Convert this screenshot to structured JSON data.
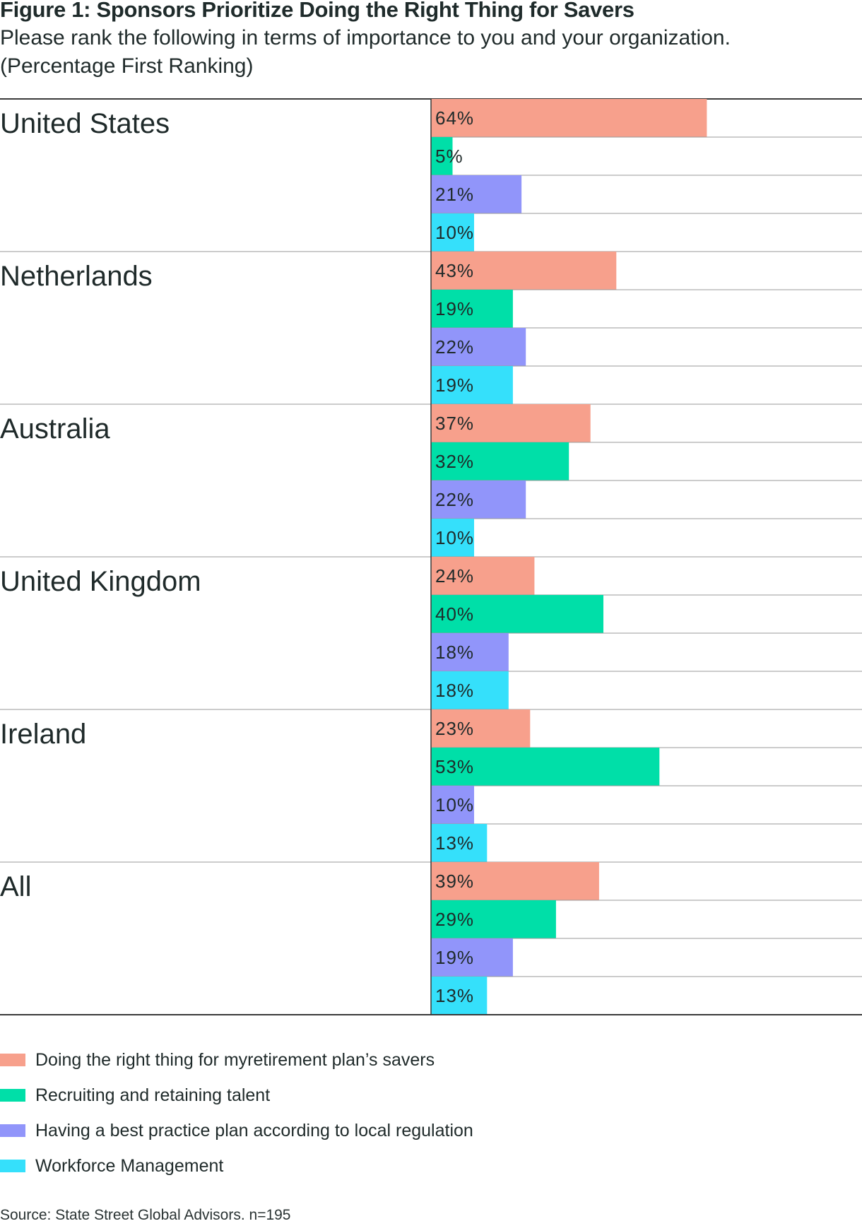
{
  "title": "Figure 1: Sponsors Prioritize Doing the Right Thing for Savers",
  "subtitle": "Please rank the following in terms of importance to you and your organization. (Percentage First Ranking)",
  "source": "Source: State Street Global Advisors. n=195",
  "chart_data": {
    "type": "bar",
    "orientation": "horizontal",
    "categories": [
      "United States",
      "Netherlands",
      "Australia",
      "United Kingdom",
      "Ireland",
      "All"
    ],
    "series": [
      {
        "name": "Doing the right thing for myretirement plan’s savers",
        "color": "#f7a08c",
        "values": [
          64,
          43,
          37,
          24,
          23,
          39
        ]
      },
      {
        "name": "Recruiting and retaining talent",
        "color": "#00dfa8",
        "values": [
          5,
          19,
          32,
          40,
          53,
          29
        ]
      },
      {
        "name": "Having a best practice plan according to local regulation",
        "color": "#9195fa",
        "values": [
          21,
          22,
          22,
          18,
          10,
          19
        ]
      },
      {
        "name": "Workforce Management",
        "color": "#35e0fb",
        "values": [
          10,
          19,
          10,
          18,
          13,
          13
        ]
      }
    ],
    "value_suffix": "%",
    "xlim": [
      0,
      100
    ],
    "legend_position": "bottom-left",
    "grid": true
  }
}
